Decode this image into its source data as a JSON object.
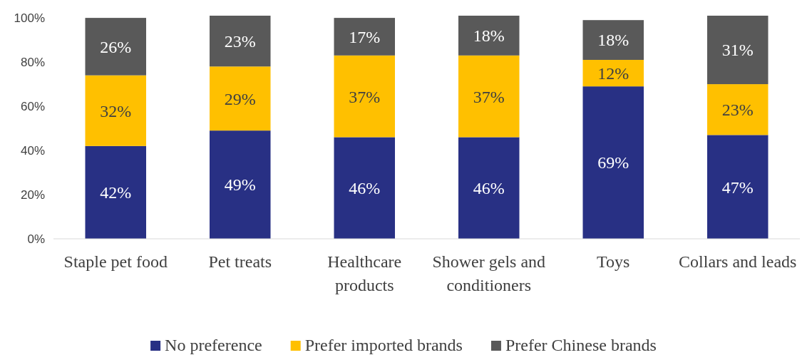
{
  "chart_data": {
    "type": "bar",
    "stacked": true,
    "categories": [
      "Staple pet food",
      "Pet treats",
      "Healthcare products",
      "Shower gels and conditioners",
      "Toys",
      "Collars and leads"
    ],
    "series": [
      {
        "name": "No preference",
        "color": "#283084",
        "values": [
          42,
          49,
          46,
          46,
          69,
          47
        ],
        "value_labels": [
          "42%",
          "49%",
          "46%",
          "46%",
          "69%",
          "47%"
        ]
      },
      {
        "name": "Prefer imported brands",
        "color": "#ffc000",
        "values": [
          32,
          29,
          37,
          37,
          12,
          23
        ],
        "value_labels": [
          "32%",
          "29%",
          "37%",
          "37%",
          "12%",
          "23%"
        ]
      },
      {
        "name": "Prefer Chinese brands",
        "color": "#595959",
        "values": [
          26,
          23,
          17,
          18,
          18,
          31
        ],
        "value_labels": [
          "26%",
          "23%",
          "17%",
          "18%",
          "18%",
          "31%"
        ]
      }
    ],
    "ylim": [
      0,
      101
    ],
    "yticks": [
      {
        "value": 0,
        "label": "0%"
      },
      {
        "value": 20,
        "label": "20%"
      },
      {
        "value": 40,
        "label": "40%"
      },
      {
        "value": 60,
        "label": "60%"
      },
      {
        "value": 80,
        "label": "80%"
      },
      {
        "value": 100,
        "label": "100%"
      }
    ],
    "grid": false,
    "legend": "bottom"
  }
}
